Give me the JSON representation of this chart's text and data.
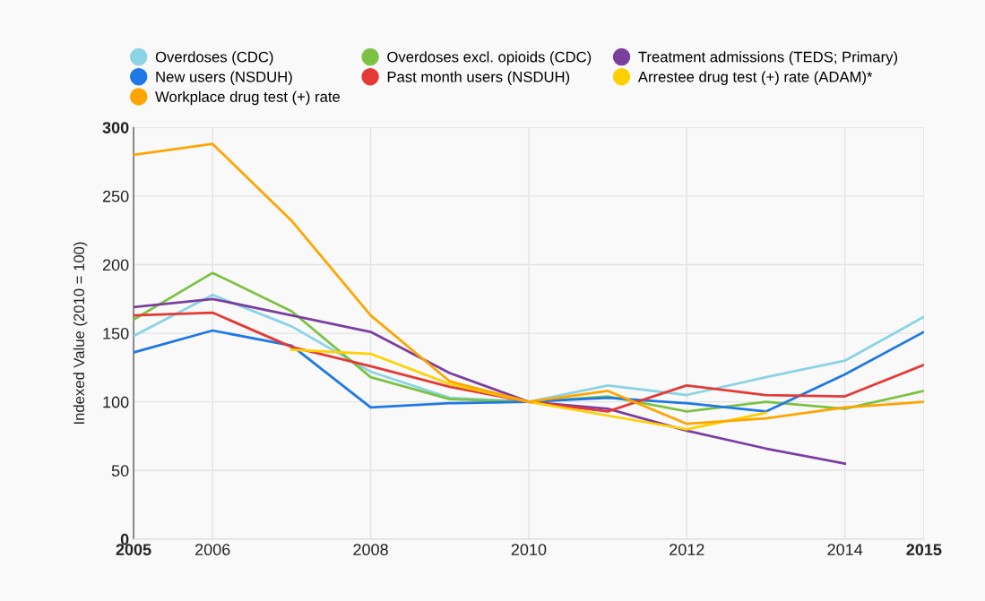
{
  "chart_data": {
    "type": "line",
    "ylabel": "Indexed Value (2010 = 100)",
    "x": [
      2005,
      2006,
      2007,
      2008,
      2009,
      2010,
      2011,
      2012,
      2013,
      2014,
      2015
    ],
    "xlim": [
      2005,
      2015
    ],
    "xticks": [
      2005,
      2006,
      2008,
      2010,
      2012,
      2014,
      2015
    ],
    "ylim": [
      0,
      300
    ],
    "yticks": [
      0,
      50,
      100,
      150,
      200,
      250,
      300
    ],
    "grid": true,
    "legend": "top",
    "series": [
      {
        "name": "Overdoses (CDC)",
        "color": "#8ad4e4",
        "values": [
          148,
          178,
          155,
          122,
          103,
          100,
          112,
          105,
          118,
          130,
          162
        ]
      },
      {
        "name": "Overdoses excl. opioids (CDC)",
        "color": "#7cc242",
        "values": [
          160,
          194,
          166,
          118,
          102,
          100,
          104,
          93,
          100,
          95,
          108
        ]
      },
      {
        "name": "Treatment admissions (TEDS; Primary)",
        "color": "#7b3fa0",
        "values": [
          169,
          175,
          163,
          151,
          121,
          100,
          95,
          79,
          66,
          55,
          null
        ]
      },
      {
        "name": "New users (NSDUH)",
        "color": "#1e78e6",
        "values": [
          136,
          152,
          141,
          96,
          99,
          100,
          103,
          99,
          93,
          120,
          151
        ]
      },
      {
        "name": "Past month users (NSDUH)",
        "color": "#e53935",
        "values": [
          163,
          165,
          140,
          126,
          111,
          100,
          93,
          112,
          105,
          104,
          127
        ]
      },
      {
        "name": "Arrestee drug test (+) rate (ADAM)*",
        "color": "#ffd000",
        "values": [
          null,
          null,
          138,
          135,
          113,
          100,
          90,
          80,
          92,
          null,
          null
        ]
      },
      {
        "name": "Workplace drug test (+) rate",
        "color": "#ffa500",
        "values": [
          280,
          288,
          232,
          163,
          115,
          100,
          108,
          84,
          88,
          96,
          100
        ]
      }
    ]
  }
}
